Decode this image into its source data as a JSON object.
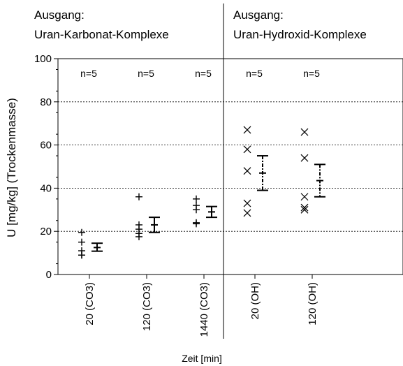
{
  "chart_data": {
    "type": "scatter",
    "ylabel": "U [mg/kg] (Trockenmasse)",
    "xlabel": "Zeit [min]",
    "ylim": [
      0,
      100
    ],
    "yticks": [
      0,
      20,
      40,
      60,
      80,
      100
    ],
    "grid": "horizontal dashed",
    "groups": [
      {
        "header_line1": "Ausgang:",
        "header_line2": "Uran-Karbonat-Komplexe"
      },
      {
        "header_line1": "Ausgang:",
        "header_line2": "Uran-Hydroxid-Komplexe"
      }
    ],
    "categories": [
      {
        "label": "20 (CO3)",
        "n_label": "n=5",
        "marker": "plus",
        "points": [
          19.5,
          15,
          11,
          9,
          9
        ],
        "mean": 12.5,
        "err_low": 10.8,
        "err_high": 14.5
      },
      {
        "label": "120 (CO3)",
        "n_label": "n=5",
        "marker": "plus",
        "points": [
          36,
          23,
          21,
          19,
          17.5
        ],
        "mean": 23,
        "err_low": 19.5,
        "err_high": 26.5
      },
      {
        "label": "1440 (CO3)",
        "n_label": "n=5",
        "marker": "plus",
        "points": [
          35,
          32,
          30,
          24,
          23.5
        ],
        "mean": 29,
        "err_low": 26.5,
        "err_high": 31.5
      },
      {
        "label": "20 (OH)",
        "n_label": "n=5",
        "marker": "cross",
        "points": [
          67,
          58,
          48,
          33,
          28.5
        ],
        "mean": 47,
        "err_low": 39,
        "err_high": 55
      },
      {
        "label": "120 (OH)",
        "n_label": "n=5",
        "marker": "cross",
        "points": [
          66,
          54,
          36,
          31,
          30
        ],
        "mean": 43.5,
        "err_low": 36,
        "err_high": 51
      }
    ]
  }
}
